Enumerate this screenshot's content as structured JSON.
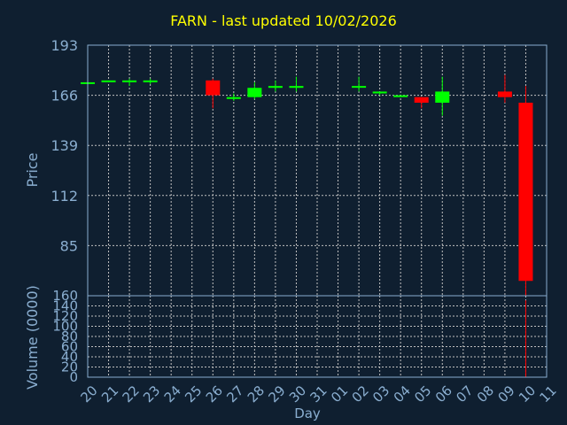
{
  "chart_data": [
    {
      "type": "candlestick",
      "title": "FARN - last updated 10/02/2026",
      "ylabel": "Price",
      "xlabel": "Day",
      "ylim": [
        58,
        193
      ],
      "yticks": [
        193,
        166,
        139,
        112,
        85
      ],
      "grid": true,
      "categories": [
        "20",
        "21",
        "22",
        "23",
        "24",
        "25",
        "26",
        "27",
        "28",
        "29",
        "30",
        "31",
        "01",
        "02",
        "03",
        "04",
        "05",
        "06",
        "07",
        "08",
        "09",
        "10",
        "11"
      ],
      "candles": [
        {
          "x": "20",
          "open": 173,
          "high": 173,
          "low": 172,
          "close": 173
        },
        {
          "x": "21",
          "open": 173,
          "high": 174,
          "low": 173,
          "close": 174
        },
        {
          "x": "22",
          "open": 173,
          "high": 175,
          "low": 171,
          "close": 174
        },
        {
          "x": "23",
          "open": 173,
          "high": 175,
          "low": 172,
          "close": 174
        },
        {
          "x": "26",
          "open": 174,
          "high": 175,
          "low": 159,
          "close": 166
        },
        {
          "x": "27",
          "open": 164,
          "high": 167,
          "low": 163,
          "close": 165
        },
        {
          "x": "28",
          "open": 165,
          "high": 173,
          "low": 164,
          "close": 170
        },
        {
          "x": "29",
          "open": 170,
          "high": 174,
          "low": 168,
          "close": 171
        },
        {
          "x": "30",
          "open": 170,
          "high": 176,
          "low": 168,
          "close": 171
        },
        {
          "x": "02",
          "open": 171,
          "high": 176,
          "low": 168,
          "close": 171
        },
        {
          "x": "03",
          "open": 167,
          "high": 168,
          "low": 166,
          "close": 168
        },
        {
          "x": "04",
          "open": 165,
          "high": 166,
          "low": 165,
          "close": 166
        },
        {
          "x": "05",
          "open": 165,
          "high": 165,
          "low": 159,
          "close": 162
        },
        {
          "x": "06",
          "open": 162,
          "high": 176,
          "low": 155,
          "close": 168
        },
        {
          "x": "09",
          "open": 168,
          "high": 177,
          "low": 162,
          "close": 165
        },
        {
          "x": "10",
          "open": 162,
          "high": 171,
          "low": 58,
          "close": 66
        }
      ],
      "colors": {
        "up": "#00ff00",
        "down": "#ff0000",
        "title": "#ffff00",
        "axis_text": "#8aaed0",
        "background": "#0f1f30",
        "frame": "#8aaed0",
        "grid": "#c0c0c0"
      }
    },
    {
      "type": "bar",
      "ylabel": "Volume (0000)",
      "xlabel": "Day",
      "ylim": [
        0,
        160
      ],
      "yticks": [
        160,
        140,
        120,
        100,
        80,
        60,
        40,
        20,
        0
      ],
      "grid": true,
      "categories": [
        "20",
        "21",
        "22",
        "23",
        "24",
        "25",
        "26",
        "27",
        "28",
        "29",
        "30",
        "31",
        "01",
        "02",
        "03",
        "04",
        "05",
        "06",
        "07",
        "08",
        "09",
        "10",
        "11"
      ],
      "values": [
        0,
        0,
        0,
        0,
        0,
        0,
        0,
        0,
        0,
        0,
        0,
        0,
        0,
        0,
        0,
        0,
        0,
        0,
        0,
        0,
        0,
        151,
        0
      ]
    }
  ]
}
